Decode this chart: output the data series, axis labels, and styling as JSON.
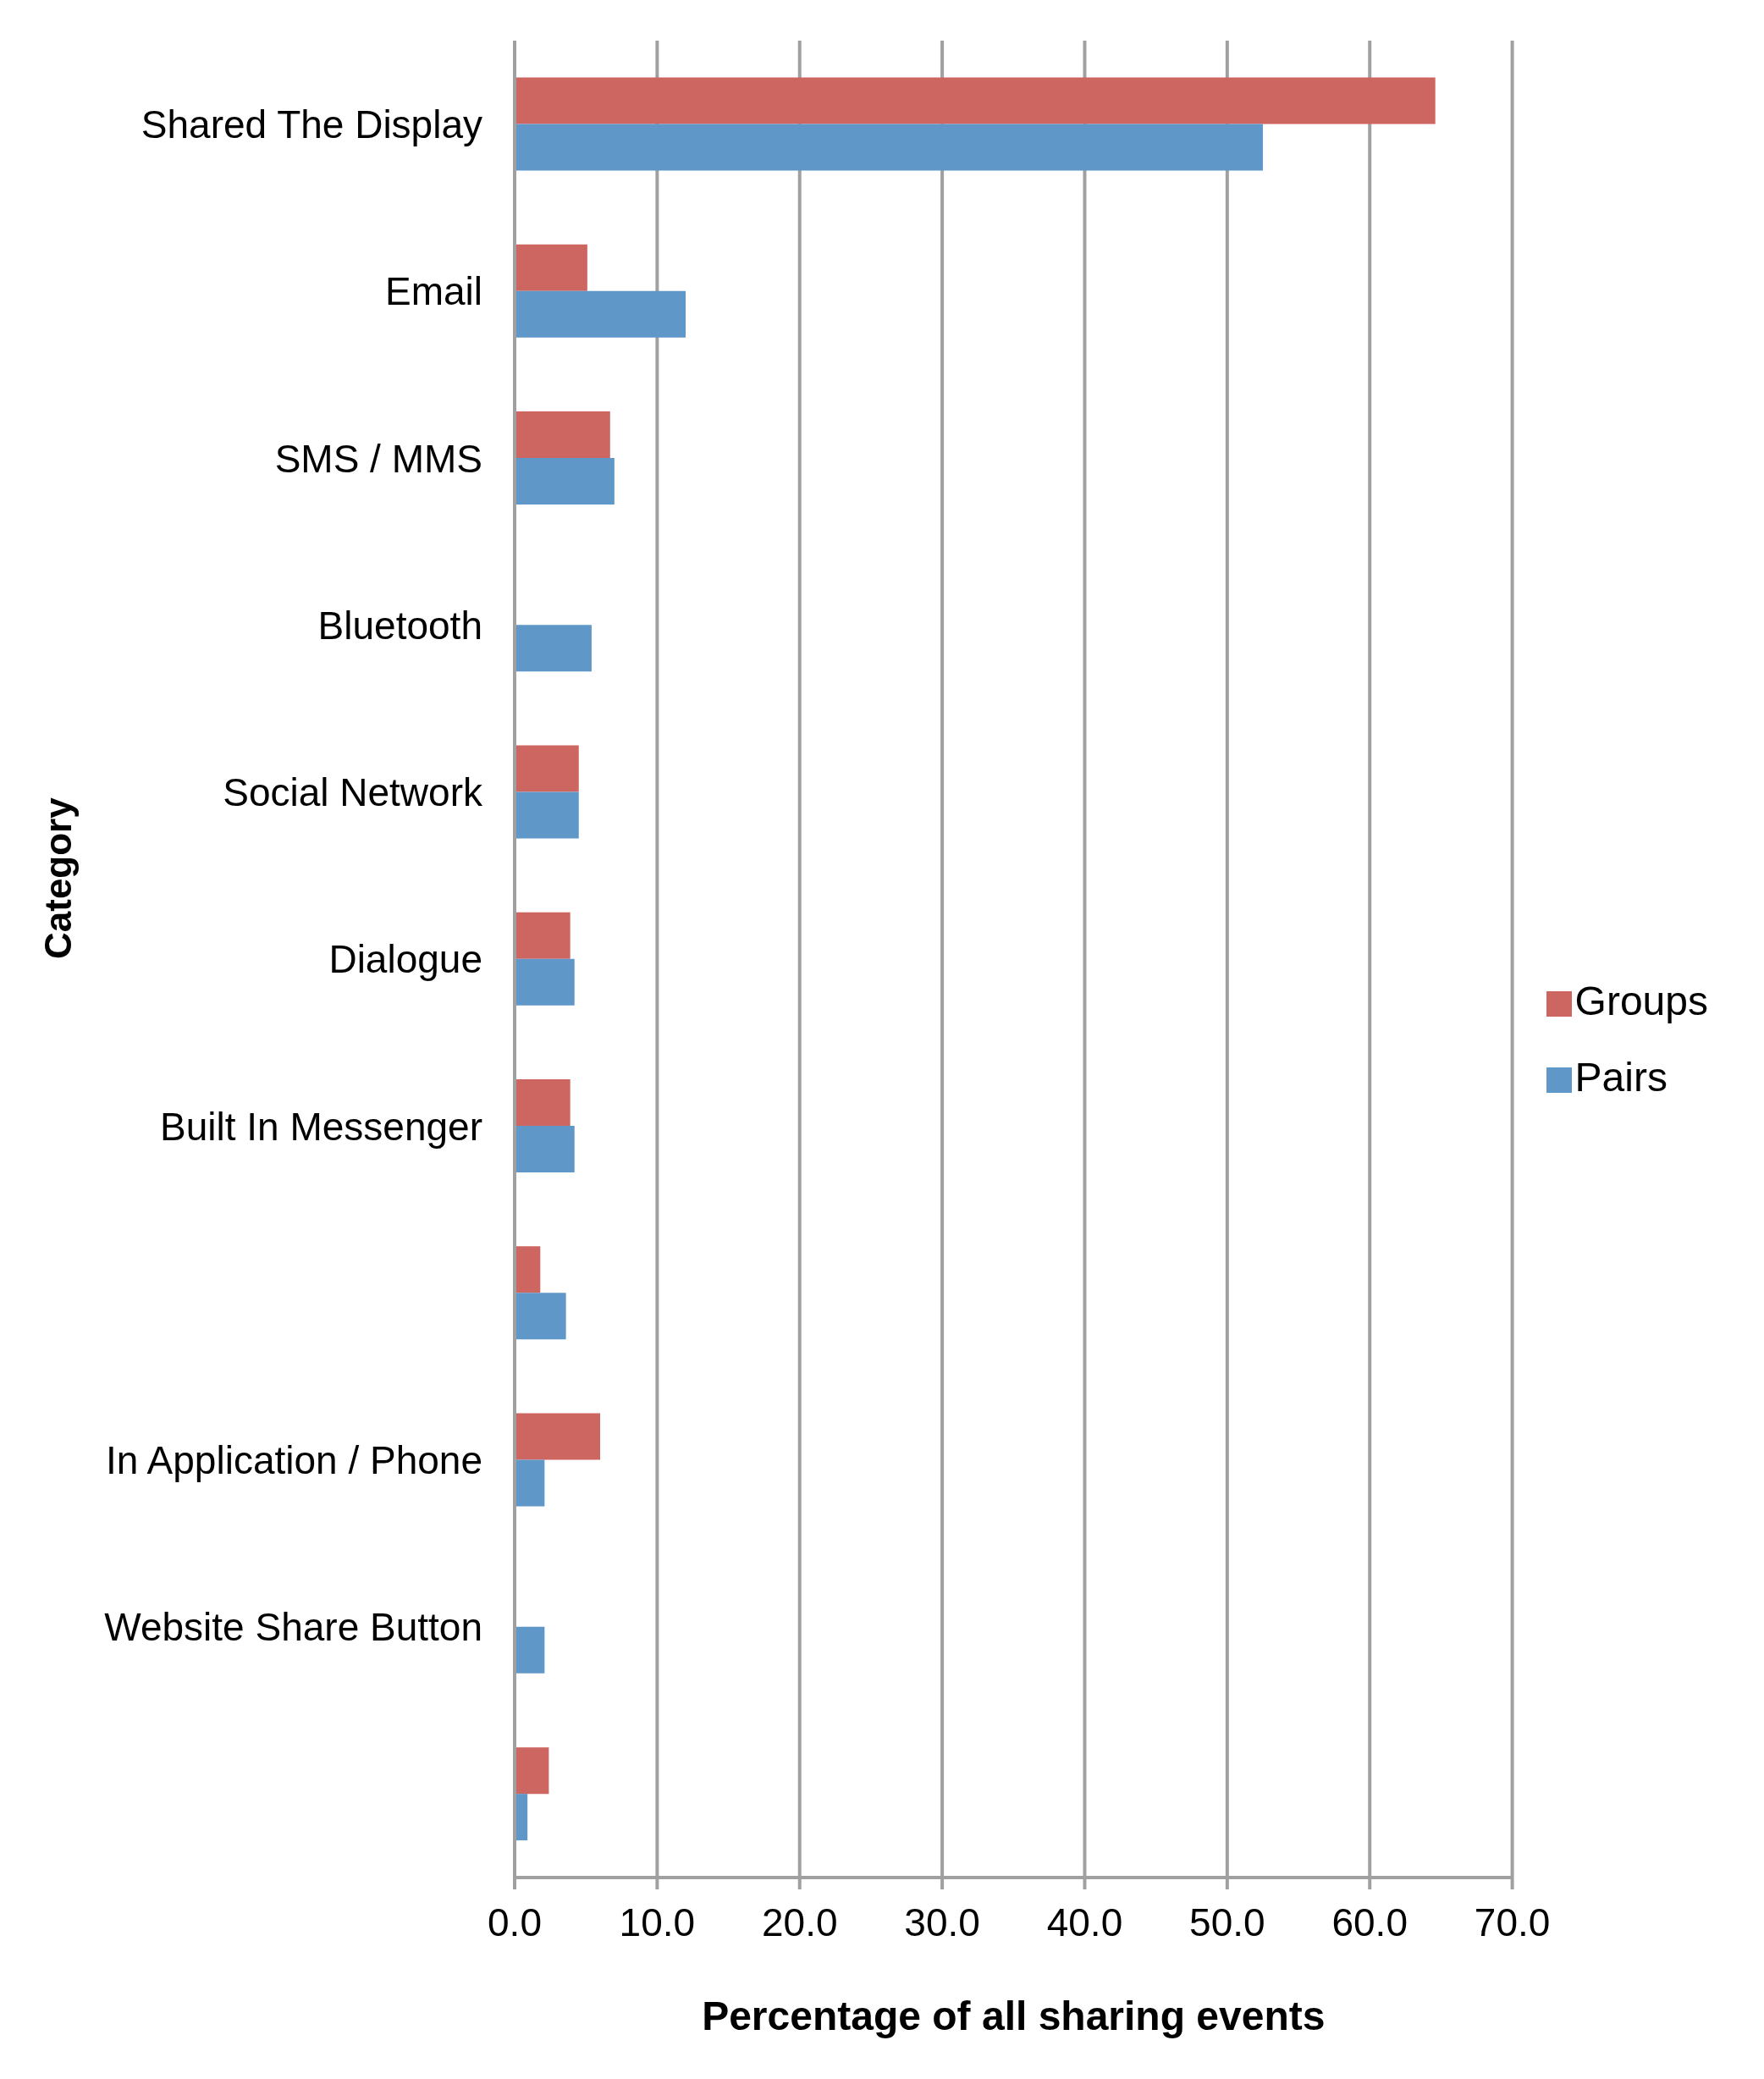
{
  "chart_data": {
    "type": "bar",
    "orientation": "horizontal",
    "xlabel": "Percentage of all sharing events",
    "ylabel": "Category",
    "categories": [
      "Shared The Display",
      "Email",
      "SMS / MMS",
      "Bluetooth",
      "Social Network",
      "Dialogue",
      "Built In Messenger",
      null,
      "In Application / Phone",
      "Website Share Button",
      null
    ],
    "series": [
      {
        "name": "Groups",
        "color": "#cd6660",
        "values": [
          64.6,
          5.1,
          6.7,
          0,
          4.5,
          3.9,
          3.9,
          1.8,
          6.0,
          0,
          2.4
        ]
      },
      {
        "name": "Pairs",
        "color": "#6097c9",
        "values": [
          52.5,
          12.0,
          7.0,
          5.4,
          4.5,
          4.2,
          4.2,
          3.6,
          2.1,
          2.1,
          0.9
        ]
      }
    ],
    "xlim": [
      0,
      70
    ],
    "xticks": [
      {
        "value": 0,
        "label": "0.0"
      },
      {
        "value": 10,
        "label": "10.0"
      },
      {
        "value": 20,
        "label": "20.0"
      },
      {
        "value": 30,
        "label": "30.0"
      },
      {
        "value": 40,
        "label": "40.0"
      },
      {
        "value": 50,
        "label": "50.0"
      },
      {
        "value": 60,
        "label": "60.0"
      },
      {
        "value": 70,
        "label": "70.0"
      }
    ],
    "grid": "x",
    "legend": "right"
  }
}
